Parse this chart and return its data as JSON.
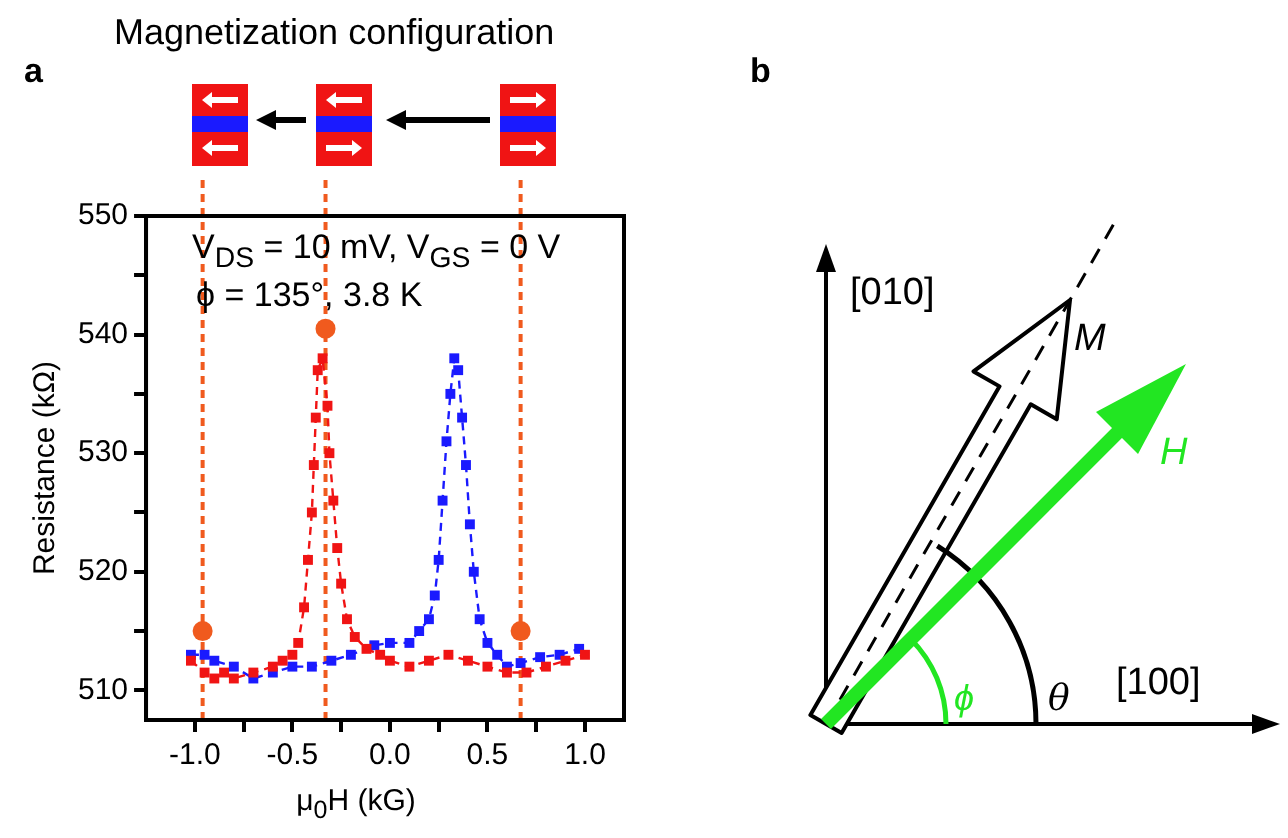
{
  "chart_data": [
    {
      "type": "line",
      "title": "Magnetization configuration",
      "xlabel": "μ$_{0}$H (kG)",
      "ylabel": "Resistance (kΩ)",
      "annotations": [
        "a",
        "V$_{DS}$ = 10 mV, V$_{GS}$ = 0 V",
        "ϕ = 135°, 3.8 K"
      ],
      "xlim": [
        -1.25,
        1.2
      ],
      "xticks": [
        {
          "value": -1,
          "label": "-1.0"
        },
        {
          "value": -0.75,
          "label": null
        },
        -0.5,
        {
          "value": -0.25,
          "label": null
        },
        {
          "value": 0,
          "label": "0.0"
        },
        {
          "value": 0.25,
          "label": null
        },
        0.5,
        {
          "value": 0.75,
          "label": null
        },
        {
          "value": 1,
          "label": "1.0"
        }
      ],
      "ylim": [
        507.5,
        550
      ],
      "yticks": [
        510,
        {
          "value": 515,
          "label": null
        },
        520,
        {
          "value": 525,
          "label": null
        },
        530,
        {
          "value": 535,
          "label": null
        },
        540,
        {
          "value": 545,
          "label": null
        },
        550
      ],
      "series": [
        {
          "type": "line",
          "color": "#f01414",
          "marker": "square",
          "line_style": "dashed",
          "x": [
            -1.02,
            -0.95,
            -0.9,
            -0.85,
            -0.8,
            -0.7,
            -0.6,
            -0.55,
            -0.5,
            -0.47,
            -0.44,
            -0.42,
            -0.4,
            -0.39,
            -0.38,
            -0.37,
            -0.345,
            -0.32,
            -0.31,
            -0.29,
            -0.27,
            -0.25,
            -0.22,
            -0.18,
            -0.12,
            -0.05,
            0,
            0.1,
            0.2,
            0.3,
            0.4,
            0.5,
            0.6,
            0.7,
            0.8,
            0.9,
            1
          ],
          "values": [
            512.5,
            511.5,
            511,
            511.5,
            511,
            511.5,
            512,
            512.5,
            513,
            514,
            517,
            521,
            525,
            529,
            533,
            537,
            538,
            534,
            530,
            526,
            522,
            519,
            516,
            514.5,
            513.5,
            513,
            512.5,
            512,
            512.5,
            513,
            512.5,
            512,
            511.5,
            511.5,
            512,
            512.5,
            513
          ]
        },
        {
          "type": "line",
          "color": "#1a1aff",
          "marker": "square",
          "line_style": "dashed",
          "x": [
            -1.02,
            -0.95,
            -0.9,
            -0.8,
            -0.7,
            -0.6,
            -0.5,
            -0.4,
            -0.3,
            -0.2,
            -0.08,
            0,
            0.1,
            0.15,
            0.2,
            0.23,
            0.25,
            0.27,
            0.29,
            0.31,
            0.33,
            0.35,
            0.37,
            0.39,
            0.41,
            0.43,
            0.46,
            0.5,
            0.55,
            0.6,
            0.67,
            0.77,
            0.87,
            0.97
          ],
          "values": [
            513,
            513,
            512.5,
            512,
            511,
            511.5,
            512,
            512,
            512.5,
            513,
            513.8,
            514,
            514,
            515,
            516,
            518,
            521,
            526,
            531,
            535,
            538,
            537,
            533,
            529,
            524,
            520,
            516,
            514,
            513,
            512,
            512.3,
            512.8,
            513,
            513.5
          ]
        },
        {
          "type": "scatter",
          "color": "#f05a1e",
          "marker": "circle",
          "x": [
            -0.96,
            -0.33,
            0.67
          ],
          "values": [
            515,
            540.5,
            515
          ]
        }
      ],
      "ref_lines": [
        {
          "axis": "x",
          "value": -0.96,
          "color": "#f05a1e",
          "line_style": "dashed"
        },
        {
          "axis": "x",
          "value": -0.33,
          "color": "#f05a1e",
          "line_style": "dashed"
        },
        {
          "axis": "x",
          "value": 0.67,
          "color": "#f05a1e",
          "line_style": "dashed"
        }
      ]
    },
    {
      "type": "other",
      "annotations": [
        "b",
        "[010]",
        "[100]",
        "M",
        "H",
        "ϕ",
        "θ"
      ]
    }
  ]
}
